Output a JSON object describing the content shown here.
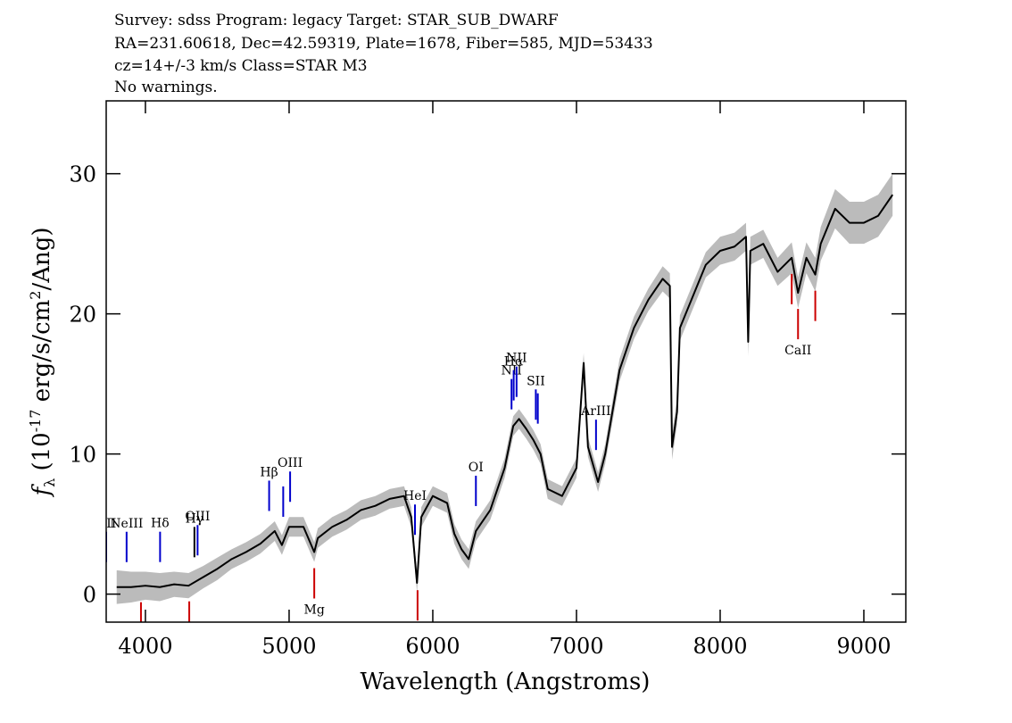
{
  "chart_data": {
    "type": "line",
    "header_lines": [
      "Survey: sdss Program: legacy Target: STAR_SUB_DWARF",
      "RA=231.60618, Dec=42.59319, Plate=1678, Fiber=585, MJD=53433",
      "cz=14+/-3 km/s Class=STAR M3",
      "No warnings."
    ],
    "xlabel": "Wavelength (Angstroms)",
    "ylabel_parts": [
      "f",
      "λ",
      " (10",
      "-17",
      " erg/s/cm",
      "2",
      "/Ang)"
    ],
    "x": [
      3800,
      3900,
      4000,
      4100,
      4200,
      4300,
      4400,
      4500,
      4600,
      4700,
      4800,
      4900,
      4950,
      5000,
      5100,
      5175,
      5200,
      5300,
      5400,
      5500,
      5600,
      5700,
      5800,
      5850,
      5890,
      5920,
      6000,
      6100,
      6150,
      6200,
      6250,
      6300,
      6400,
      6500,
      6560,
      6600,
      6650,
      6700,
      6750,
      6800,
      6900,
      7000,
      7050,
      7080,
      7150,
      7200,
      7300,
      7400,
      7500,
      7600,
      7650,
      7665,
      7700,
      7720,
      7800,
      7900,
      8000,
      8100,
      8180,
      8195,
      8210,
      8300,
      8400,
      8498,
      8542,
      8600,
      8662,
      8700,
      8800,
      8900,
      9000,
      9100,
      9200
    ],
    "values": [
      0.5,
      0.5,
      0.6,
      0.5,
      0.7,
      0.6,
      1.2,
      1.8,
      2.5,
      3.0,
      3.6,
      4.5,
      3.5,
      4.8,
      4.8,
      3.0,
      4.0,
      4.8,
      5.3,
      6.0,
      6.3,
      6.8,
      7.0,
      5.5,
      0.8,
      5.5,
      7.0,
      6.5,
      4.3,
      3.2,
      2.5,
      4.5,
      6.0,
      9.0,
      12.0,
      12.5,
      11.8,
      11.0,
      10.0,
      7.5,
      7.0,
      9.0,
      16.5,
      10.5,
      8.0,
      10.0,
      16.0,
      19.0,
      21.0,
      22.5,
      22.0,
      10.5,
      13.0,
      19.0,
      21.0,
      23.5,
      24.5,
      24.8,
      25.5,
      18.0,
      24.5,
      25.0,
      23.0,
      24.0,
      21.5,
      24.0,
      22.8,
      25.0,
      27.5,
      26.5,
      26.5,
      27.0,
      28.5
    ],
    "error": [
      1.2,
      1.1,
      1.0,
      1.0,
      0.9,
      0.9,
      0.8,
      0.8,
      0.7,
      0.7,
      0.7,
      0.7,
      0.7,
      0.7,
      0.7,
      0.7,
      0.7,
      0.7,
      0.7,
      0.7,
      0.7,
      0.7,
      0.7,
      0.7,
      0.7,
      0.7,
      0.7,
      0.7,
      0.7,
      0.7,
      0.7,
      0.7,
      0.7,
      0.7,
      0.7,
      0.7,
      0.7,
      0.7,
      0.7,
      0.7,
      0.7,
      0.7,
      0.7,
      0.7,
      0.7,
      0.7,
      0.8,
      0.8,
      0.8,
      0.9,
      0.9,
      0.9,
      0.9,
      0.9,
      0.9,
      0.9,
      1.0,
      1.0,
      1.0,
      1.0,
      1.0,
      1.0,
      1.0,
      1.1,
      1.1,
      1.1,
      1.2,
      1.2,
      1.4,
      1.5,
      1.5,
      1.5,
      1.5
    ],
    "color": "#000000",
    "error_color": "#bbbbbb",
    "lines": [
      {
        "label": "OII",
        "wavelength": 3727,
        "color": "#0000cc"
      },
      {
        "label": "NeIII",
        "wavelength": 3869,
        "color": "#0000cc"
      },
      {
        "label": "Hδ",
        "wavelength": 4102,
        "color": "#0000cc"
      },
      {
        "label": "Hγ",
        "wavelength": 4341,
        "color": "#000000"
      },
      {
        "label": "OIII",
        "wavelength": 4363,
        "color": "#0000cc"
      },
      {
        "label": "Hβ",
        "wavelength": 4861,
        "color": "#0000cc"
      },
      {
        "label": null,
        "wavelength": 4959,
        "color": "#0000cc"
      },
      {
        "label": "OIII",
        "wavelength": 5007,
        "color": "#0000cc"
      },
      {
        "label": "HeI",
        "wavelength": 5876,
        "color": "#0000cc"
      },
      {
        "label": "OI",
        "wavelength": 6300,
        "color": "#0000cc"
      },
      {
        "label": "NII",
        "wavelength": 6548,
        "color": "#0000cc"
      },
      {
        "label": "Hα",
        "wavelength": 6563,
        "color": "#0000cc"
      },
      {
        "label": "NII",
        "wavelength": 6583,
        "color": "#0000cc"
      },
      {
        "label": "SII",
        "wavelength": 6717,
        "color": "#0000cc"
      },
      {
        "label": null,
        "wavelength": 6731,
        "color": "#0000cc"
      },
      {
        "label": "ArIII",
        "wavelength": 7136,
        "color": "#0000cc"
      },
      {
        "label": null,
        "wavelength": 3969,
        "color": "#cc0000"
      },
      {
        "label": null,
        "wavelength": 4305,
        "color": "#cc0000"
      },
      {
        "label": "Mg",
        "wavelength": 5175,
        "color": "#cc0000"
      },
      {
        "label": null,
        "wavelength": 5894,
        "color": "#cc0000"
      },
      {
        "label": null,
        "wavelength": 8498,
        "color": "#cc0000"
      },
      {
        "label": "CaII",
        "wavelength": 8542,
        "color": "#cc0000"
      },
      {
        "label": null,
        "wavelength": 8662,
        "color": "#cc0000"
      }
    ],
    "xlim": [
      3727,
      9292
    ],
    "ylim": [
      -2,
      35.2
    ],
    "xticks": [
      4000,
      5000,
      6000,
      7000,
      8000,
      9000
    ],
    "yticks": [
      0,
      10,
      20,
      30
    ]
  }
}
